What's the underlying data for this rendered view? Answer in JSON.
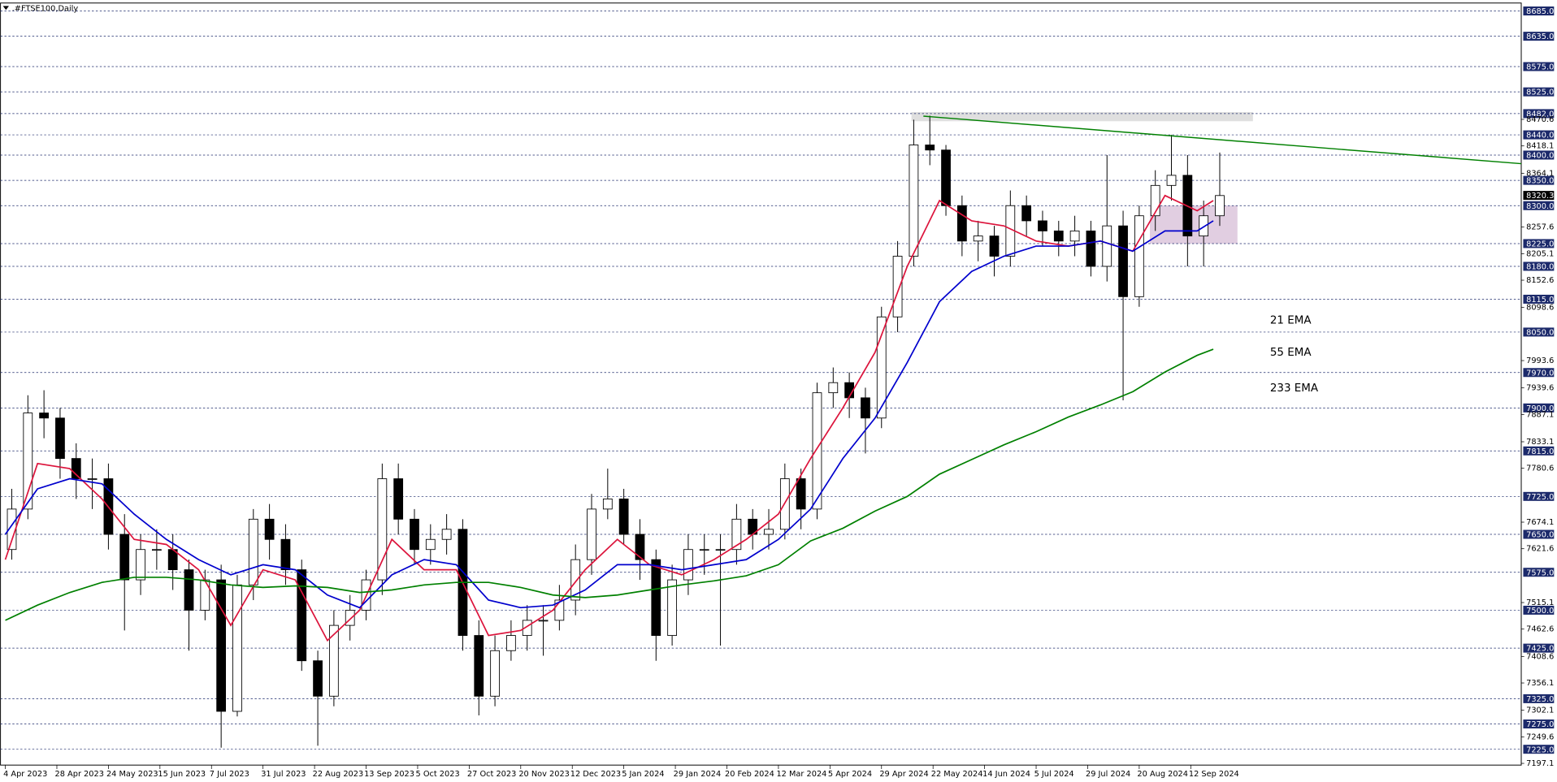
{
  "chart_data": {
    "type": "candlestick",
    "title": ".#FTSE100,Daily",
    "xlim": [
      -1.5,
      470.6
    ],
    "ylim": [
      7193.7,
      8700.7
    ],
    "xticks": [
      {
        "value": 0,
        "label": "4 Apr 2023"
      },
      {
        "value": 16,
        "label": "28 Apr 2023"
      },
      {
        "value": 32,
        "label": "24 May 2023"
      },
      {
        "value": 48,
        "label": "15 Jun 2023"
      },
      {
        "value": 64,
        "label": "7 Jul 2023"
      },
      {
        "value": 80,
        "label": "31 Jul 2023"
      },
      {
        "value": 96,
        "label": "22 Aug 2023"
      },
      {
        "value": 112,
        "label": "13 Sep 2023"
      },
      {
        "value": 128,
        "label": "5 Oct 2023"
      },
      {
        "value": 144,
        "label": "27 Oct 2023"
      },
      {
        "value": 160,
        "label": "20 Nov 2023"
      },
      {
        "value": 176,
        "label": "12 Dec 2023"
      },
      {
        "value": 192,
        "label": "5 Jan 2024"
      },
      {
        "value": 208,
        "label": "29 Jan 2024"
      },
      {
        "value": 224,
        "label": "20 Feb 2024"
      },
      {
        "value": 240,
        "label": "12 Mar 2024"
      },
      {
        "value": 256,
        "label": "5 Apr 2024"
      },
      {
        "value": 272,
        "label": "29 Apr 2024"
      },
      {
        "value": 288,
        "label": "22 May 2024"
      },
      {
        "value": 304,
        "label": "14 Jun 2024"
      },
      {
        "value": 320,
        "label": "5 Jul 2024"
      },
      {
        "value": 336,
        "label": "29 Jul 2024"
      },
      {
        "value": 352,
        "label": "20 Aug 2024"
      },
      {
        "value": 368,
        "label": "12 Sep 2024"
      }
    ],
    "yticks": [
      8470.6,
      8418.1,
      8364.1,
      8257.6,
      8205.1,
      8152.6,
      8098.6,
      7993.6,
      7939.6,
      7887.1,
      7833.1,
      7780.6,
      7674.1,
      7621.6,
      7515.1,
      7462.6,
      7408.6,
      7356.1,
      7302.1,
      7249.6,
      7197.1
    ],
    "levels": [
      {
        "value": 8685,
        "label": "8685.0"
      },
      {
        "value": 8635,
        "label": "8635.0"
      },
      {
        "value": 8575,
        "label": "8575.0"
      },
      {
        "value": 8525,
        "label": "8525.0"
      },
      {
        "value": 8482,
        "label": "8482.0"
      },
      {
        "value": 8440,
        "label": "8440.0"
      },
      {
        "value": 8400,
        "label": "8400.0"
      },
      {
        "value": 8350,
        "label": "8350.0"
      },
      {
        "value": 8300,
        "label": "8300.0"
      },
      {
        "value": 8225,
        "label": "8225.0"
      },
      {
        "value": 8180,
        "label": "8180.0"
      },
      {
        "value": 8115,
        "label": "8115.0"
      },
      {
        "value": 8050,
        "label": "8050.0"
      },
      {
        "value": 7970,
        "label": "7970.0"
      },
      {
        "value": 7900,
        "label": "7900.0"
      },
      {
        "value": 7815,
        "label": "7815.0"
      },
      {
        "value": 7725,
        "label": "7725.0"
      },
      {
        "value": 7650,
        "label": "7650.0"
      },
      {
        "value": 7575,
        "label": "7575.0"
      },
      {
        "value": 7500,
        "label": "7500.0"
      },
      {
        "value": 7425,
        "label": "7425.0"
      },
      {
        "value": 7325,
        "label": "7325.0"
      },
      {
        "value": 7275,
        "label": "7275.0"
      },
      {
        "value": 7225,
        "label": "7225.0"
      }
    ],
    "level_color": "#1c2a6b",
    "last_price": 8320.3,
    "x": [
      2,
      7,
      12,
      17,
      22,
      27,
      32,
      37,
      42,
      47,
      52,
      57,
      62,
      67,
      72,
      77,
      82,
      87,
      92,
      97,
      102,
      107,
      112,
      117,
      122,
      127,
      132,
      137,
      142,
      147,
      152,
      157,
      162,
      167,
      172,
      177,
      182,
      187,
      192,
      197,
      202,
      207,
      212,
      217,
      222,
      227,
      232,
      237,
      242,
      247,
      252,
      257,
      262,
      267,
      272,
      277,
      282,
      287,
      292,
      297,
      302,
      307,
      312,
      317,
      322,
      327,
      332,
      337,
      342,
      347,
      352,
      357,
      362,
      367,
      372,
      377
    ],
    "open": [
      7620,
      7700,
      7890,
      7880,
      7800,
      7760,
      7760,
      7650,
      7560,
      7620,
      7620,
      7580,
      7500,
      7560,
      7300,
      7550,
      7680,
      7640,
      7580,
      7400,
      7330,
      7470,
      7500,
      7560,
      7760,
      7680,
      7620,
      7640,
      7660,
      7450,
      7330,
      7420,
      7450,
      7480,
      7480,
      7520,
      7600,
      7700,
      7720,
      7650,
      7600,
      7450,
      7560,
      7620,
      7620,
      7620,
      7680,
      7650,
      7660,
      7760,
      7700,
      7930,
      7950,
      7920,
      7880,
      8080,
      8200,
      8420,
      8410,
      8300,
      8230,
      8240,
      8200,
      8300,
      8270,
      8250,
      8230,
      8250,
      8180,
      8260,
      8120,
      8280,
      8340,
      8360,
      8240,
      8280
    ],
    "high": [
      7740,
      7925,
      7935,
      7900,
      7830,
      7800,
      7790,
      7690,
      7650,
      7660,
      7650,
      7600,
      7580,
      7590,
      7570,
      7700,
      7710,
      7670,
      7600,
      7420,
      7500,
      7530,
      7580,
      7790,
      7790,
      7700,
      7670,
      7690,
      7680,
      7480,
      7450,
      7480,
      7510,
      7510,
      7550,
      7630,
      7730,
      7780,
      7740,
      7680,
      7620,
      7590,
      7650,
      7650,
      7650,
      7710,
      7700,
      7700,
      7790,
      7780,
      7950,
      7980,
      7970,
      7940,
      8100,
      8230,
      8470,
      8478,
      8420,
      8320,
      8270,
      8260,
      8330,
      8320,
      8290,
      8270,
      8280,
      8270,
      8400,
      8290,
      8300,
      8370,
      8440,
      8400,
      8310,
      8405
    ],
    "low": [
      7600,
      7680,
      7840,
      7760,
      7720,
      7700,
      7620,
      7460,
      7530,
      7580,
      7540,
      7420,
      7480,
      7228,
      7290,
      7520,
      7600,
      7550,
      7380,
      7232,
      7310,
      7440,
      7480,
      7530,
      7650,
      7590,
      7590,
      7610,
      7420,
      7292,
      7310,
      7400,
      7420,
      7410,
      7460,
      7490,
      7570,
      7680,
      7630,
      7560,
      7400,
      7430,
      7530,
      7570,
      7430,
      7590,
      7620,
      7620,
      7640,
      7660,
      7680,
      7900,
      7880,
      7810,
      7860,
      8050,
      8180,
      8380,
      8280,
      8200,
      8190,
      8160,
      8180,
      8240,
      8220,
      8200,
      8200,
      8160,
      8150,
      7915,
      8100,
      8250,
      8310,
      8180,
      8180,
      8260
    ],
    "close": [
      7700,
      7890,
      7880,
      7800,
      7760,
      7760,
      7650,
      7560,
      7620,
      7620,
      7580,
      7500,
      7560,
      7300,
      7550,
      7680,
      7640,
      7580,
      7400,
      7330,
      7470,
      7500,
      7560,
      7760,
      7680,
      7620,
      7640,
      7660,
      7450,
      7330,
      7420,
      7450,
      7480,
      7480,
      7520,
      7600,
      7700,
      7720,
      7650,
      7600,
      7450,
      7560,
      7620,
      7620,
      7620,
      7680,
      7650,
      7660,
      7760,
      7700,
      7930,
      7950,
      7920,
      7880,
      8080,
      8200,
      8420,
      8410,
      8300,
      8230,
      8240,
      8200,
      8300,
      8270,
      8250,
      8230,
      8250,
      8180,
      8260,
      8120,
      8280,
      8340,
      8360,
      8240,
      8280,
      8320
    ],
    "series": [
      {
        "name": "21 EMA",
        "color": "#dc143c",
        "x": [
          0,
          10,
          20,
          30,
          40,
          50,
          60,
          70,
          80,
          90,
          100,
          110,
          120,
          130,
          140,
          150,
          160,
          170,
          180,
          190,
          200,
          210,
          220,
          230,
          240,
          250,
          260,
          270,
          280,
          290,
          300,
          310,
          320,
          330,
          340,
          350,
          360,
          370,
          375
        ],
        "values": [
          7600,
          7790,
          7780,
          7720,
          7640,
          7630,
          7580,
          7470,
          7580,
          7560,
          7440,
          7500,
          7640,
          7580,
          7580,
          7450,
          7460,
          7500,
          7580,
          7640,
          7590,
          7570,
          7600,
          7640,
          7690,
          7800,
          7900,
          8010,
          8180,
          8310,
          8270,
          8260,
          8230,
          8220,
          8230,
          8210,
          8320,
          8290,
          8310
        ]
      },
      {
        "name": "55 EMA",
        "color": "#0000cd",
        "x": [
          0,
          10,
          20,
          30,
          40,
          50,
          60,
          70,
          80,
          90,
          100,
          110,
          120,
          130,
          140,
          150,
          160,
          170,
          180,
          190,
          200,
          210,
          220,
          230,
          240,
          250,
          260,
          270,
          280,
          290,
          300,
          310,
          320,
          330,
          340,
          350,
          360,
          370,
          375
        ],
        "values": [
          7650,
          7740,
          7760,
          7750,
          7690,
          7640,
          7600,
          7570,
          7590,
          7580,
          7530,
          7505,
          7570,
          7600,
          7590,
          7520,
          7505,
          7510,
          7540,
          7590,
          7590,
          7580,
          7590,
          7600,
          7640,
          7700,
          7800,
          7880,
          7990,
          8110,
          8170,
          8200,
          8220,
          8220,
          8230,
          8210,
          8250,
          8250,
          8270
        ]
      },
      {
        "name": "233 EMA",
        "color": "#008000",
        "x": [
          0,
          10,
          20,
          30,
          40,
          50,
          60,
          70,
          80,
          90,
          100,
          110,
          120,
          130,
          140,
          150,
          160,
          170,
          180,
          190,
          200,
          210,
          220,
          230,
          240,
          250,
          260,
          270,
          280,
          290,
          300,
          310,
          320,
          330,
          340,
          350,
          360,
          370,
          375
        ],
        "values": [
          7480,
          7510,
          7535,
          7555,
          7565,
          7565,
          7560,
          7550,
          7545,
          7548,
          7545,
          7535,
          7540,
          7550,
          7555,
          7555,
          7545,
          7530,
          7525,
          7530,
          7540,
          7550,
          7558,
          7568,
          7590,
          7637,
          7662,
          7696,
          7725,
          7769,
          7798,
          7827,
          7853,
          7882,
          7906,
          7932,
          7971,
          8004,
          8016
        ]
      }
    ],
    "trendline": {
      "x": [
        285,
        470.6
      ],
      "values": [
        8477,
        8383
      ],
      "color": "#008000"
    },
    "zones": [
      {
        "x": [
          281.3,
          387.3
        ],
        "values": [
          8467,
          8485
        ],
        "color": "#d9d9d9"
      },
      {
        "x": [
          355.3,
          382.5
        ],
        "values": [
          8225,
          8300
        ],
        "color": "#dcc6dc"
      }
    ]
  }
}
